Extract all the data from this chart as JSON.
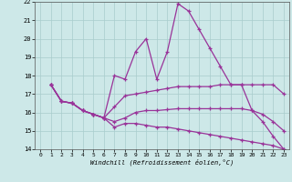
{
  "xlabel": "Windchill (Refroidissement éolien,°C)",
  "xlim": [
    -0.5,
    23.5
  ],
  "ylim": [
    14,
    22
  ],
  "yticks": [
    14,
    15,
    16,
    17,
    18,
    19,
    20,
    21,
    22
  ],
  "xticks": [
    0,
    1,
    2,
    3,
    4,
    5,
    6,
    7,
    8,
    9,
    10,
    11,
    12,
    13,
    14,
    15,
    16,
    17,
    18,
    19,
    20,
    21,
    22,
    23
  ],
  "bg_color": "#cde8e8",
  "line_color": "#993399",
  "grid_color": "#a8cccc",
  "lines": [
    {
      "x": [
        1,
        2,
        3,
        4,
        5,
        6,
        7,
        8,
        9,
        10,
        11,
        12,
        13,
        14,
        15,
        16,
        17,
        18,
        19,
        20,
        21,
        22,
        23
      ],
      "y": [
        17.5,
        16.6,
        16.5,
        16.1,
        15.9,
        15.7,
        18.0,
        17.8,
        19.3,
        20.0,
        17.8,
        19.3,
        21.9,
        21.5,
        20.5,
        19.5,
        18.5,
        17.5,
        17.5,
        16.1,
        15.5,
        14.7,
        14.0
      ]
    },
    {
      "x": [
        1,
        2,
        3,
        4,
        5,
        6,
        7,
        8,
        9,
        10,
        11,
        12,
        13,
        14,
        15,
        16,
        17,
        18,
        19,
        20,
        21,
        22,
        23
      ],
      "y": [
        17.5,
        16.6,
        16.5,
        16.1,
        15.9,
        15.7,
        16.3,
        16.9,
        17.0,
        17.1,
        17.2,
        17.3,
        17.4,
        17.4,
        17.4,
        17.4,
        17.5,
        17.5,
        17.5,
        17.5,
        17.5,
        17.5,
        17.0
      ]
    },
    {
      "x": [
        1,
        2,
        3,
        4,
        5,
        6,
        7,
        8,
        9,
        10,
        11,
        12,
        13,
        14,
        15,
        16,
        17,
        18,
        19,
        20,
        21,
        22,
        23
      ],
      "y": [
        17.5,
        16.6,
        16.5,
        16.1,
        15.9,
        15.7,
        15.5,
        15.7,
        16.0,
        16.1,
        16.1,
        16.15,
        16.2,
        16.2,
        16.2,
        16.2,
        16.2,
        16.2,
        16.2,
        16.1,
        15.9,
        15.5,
        15.0
      ]
    },
    {
      "x": [
        1,
        2,
        3,
        4,
        5,
        6,
        7,
        8,
        9,
        10,
        11,
        12,
        13,
        14,
        15,
        16,
        17,
        18,
        19,
        20,
        21,
        22,
        23
      ],
      "y": [
        17.5,
        16.6,
        16.5,
        16.1,
        15.9,
        15.7,
        15.2,
        15.4,
        15.4,
        15.3,
        15.2,
        15.2,
        15.1,
        15.0,
        14.9,
        14.8,
        14.7,
        14.6,
        14.5,
        14.4,
        14.3,
        14.2,
        14.0
      ]
    }
  ]
}
